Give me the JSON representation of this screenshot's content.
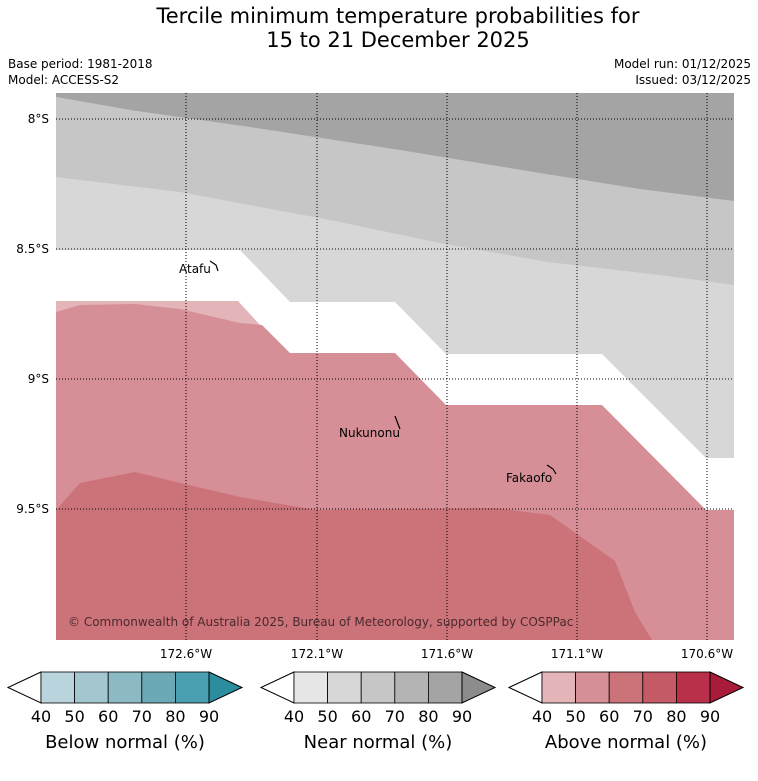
{
  "title": {
    "line1": "Tercile minimum temperature probabilities for",
    "line2": "15 to 21 December 2025"
  },
  "meta": {
    "base_period": "Base period: 1981-2018",
    "model": "Model: ACCESS-S2",
    "model_run": "Model run: 01/12/2025",
    "issued": "Issued: 03/12/2025"
  },
  "map": {
    "lat_labels": [
      "8°S",
      "8.5°S",
      "9°S",
      "9.5°S"
    ],
    "lon_labels": [
      "172.6°W",
      "172.1°W",
      "171.6°W",
      "171.1°W",
      "170.6°W"
    ],
    "places": [
      "Atafu",
      "Nukunonu",
      "Fakaofo"
    ],
    "copyright": "© Commonwealth of Australia 2025, Bureau of Meteorology, supported by COSPPac"
  },
  "colorbars": [
    {
      "title": "Below normal (%)",
      "ticks": [
        "40",
        "50",
        "60",
        "70",
        "80",
        "90"
      ],
      "colors": [
        "#b9d4dc",
        "#a4c7cf",
        "#8bbac4",
        "#6da8b5",
        "#4aa0b0",
        "#2a8e9e"
      ]
    },
    {
      "title": "Near normal (%)",
      "ticks": [
        "40",
        "50",
        "60",
        "70",
        "80",
        "90"
      ],
      "colors": [
        "#e6e6e6",
        "#d7d7d7",
        "#c6c6c6",
        "#b4b4b4",
        "#a4a4a4",
        "#8c8c8c"
      ]
    },
    {
      "title": "Above normal (%)",
      "ticks": [
        "40",
        "50",
        "60",
        "70",
        "80",
        "90"
      ],
      "colors": [
        "#e3b5b9",
        "#d68f96",
        "#cc7279",
        "#c35a66",
        "#b8304a",
        "#a81c3a"
      ]
    }
  ]
}
